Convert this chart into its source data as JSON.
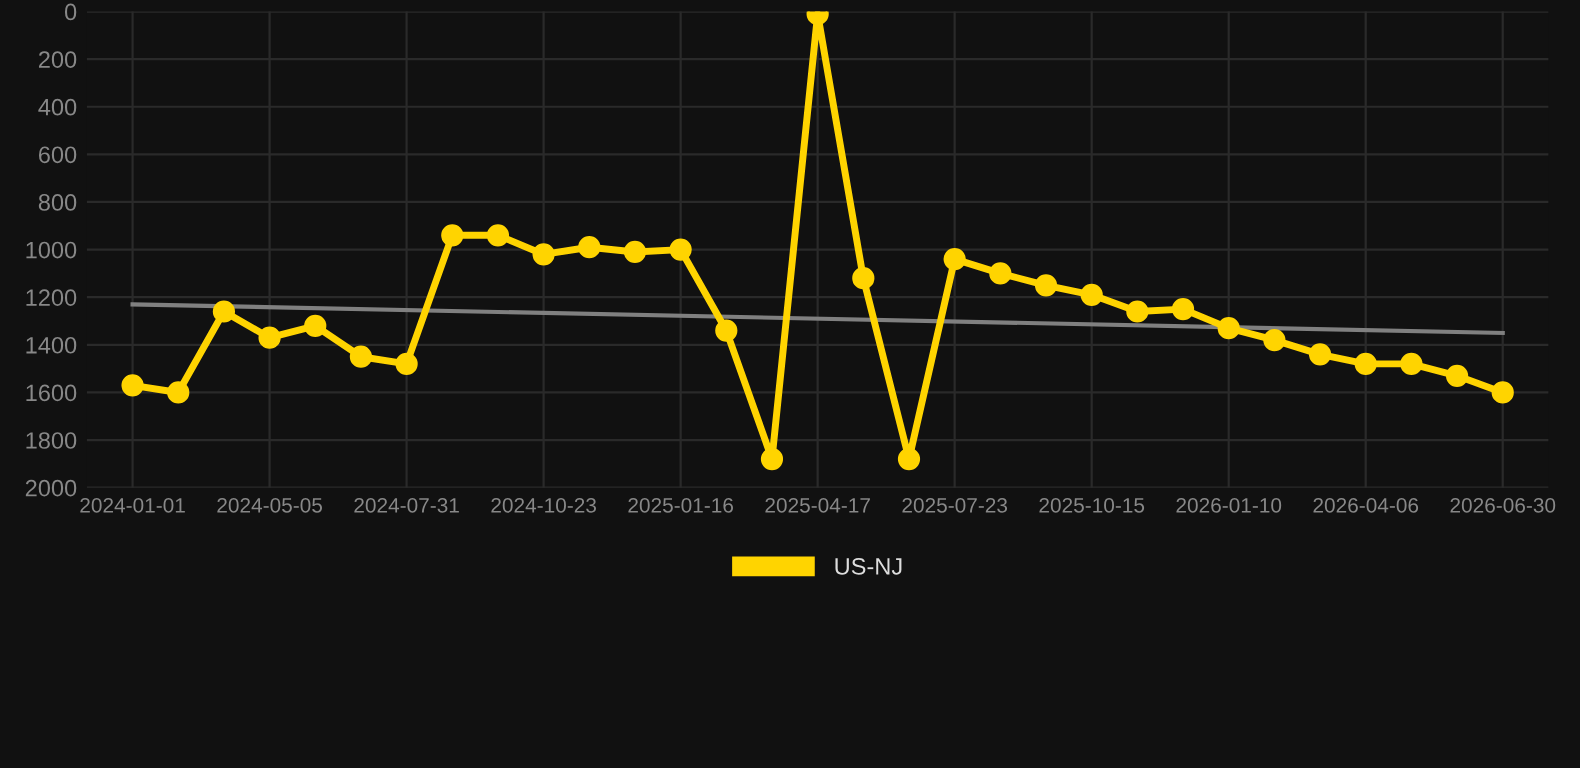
{
  "chart_data": {
    "type": "line",
    "categories": [
      "2024-01-01",
      null,
      null,
      "2024-05-05",
      null,
      null,
      "2024-07-31",
      null,
      null,
      "2024-10-23",
      null,
      null,
      "2025-01-16",
      null,
      null,
      "2025-04-17",
      null,
      null,
      "2025-07-23",
      null,
      null,
      "2025-10-15",
      null,
      null,
      "2026-01-10",
      null,
      null,
      "2026-04-06",
      null,
      null,
      "2026-06-30"
    ],
    "series": [
      {
        "name": "US-NJ",
        "color": "#ffd400",
        "marker": "circle",
        "values": [
          1570,
          1600,
          1260,
          1370,
          1320,
          1450,
          1480,
          940,
          940,
          1020,
          990,
          1010,
          1000,
          1340,
          1880,
          10,
          1120,
          1880,
          1040,
          1100,
          1150,
          1190,
          1260,
          1250,
          1330,
          1380,
          1440,
          1480,
          1480,
          1530,
          1600
        ]
      },
      {
        "type": "line",
        "color": "#808080",
        "marker": "none",
        "values": [
          1230,
          null,
          null,
          null,
          null,
          null,
          null,
          null,
          null,
          null,
          null,
          null,
          null,
          null,
          null,
          null,
          null,
          null,
          null,
          null,
          null,
          null,
          null,
          null,
          null,
          null,
          null,
          null,
          null,
          null,
          1350
        ]
      }
    ],
    "ylim": [
      2000,
      0
    ],
    "yticks": [
      0,
      200,
      400,
      600,
      800,
      1000,
      1200,
      1400,
      1600,
      1800,
      2000
    ],
    "grid": true,
    "legend": "bottom",
    "line_style": "solid"
  }
}
